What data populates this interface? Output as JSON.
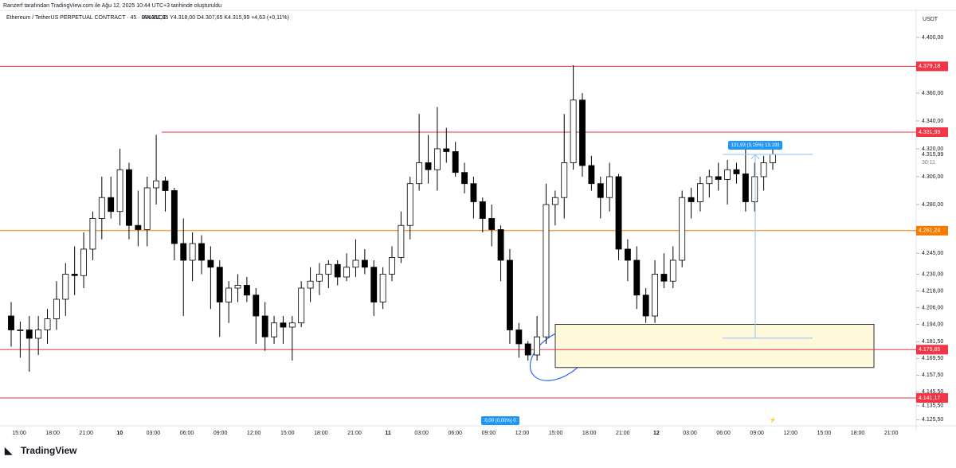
{
  "header": {
    "credit": "Ranzerf tarafından TradingView.com ile Ağu 12, 2025 10:44 UTC+3 tarihinde oluşturuldu",
    "logo": "TradingView"
  },
  "chart_data": {
    "type": "candlestick",
    "title": "Ethereum / TetherUS PERPETUAL CONTRACT · 45 · BINANCE",
    "subtitle": "A4.311,35  Y4.318,00  D4.307,65  K4.315,99  +4,63 (+0,11%)",
    "currency": "USDT",
    "up_color": "#ffffff",
    "down_color": "#000000",
    "border_color": "#000000",
    "open": [
      4200,
      4190,
      4190,
      4184,
      4190,
      4198,
      4212,
      4230,
      4229,
      4248,
      4270,
      4285,
      4275,
      4305,
      4265,
      4262,
      4292,
      4297,
      4290,
      4252,
      4240,
      4252,
      4240,
      4235,
      4210,
      4220,
      4222,
      4215,
      4200,
      4185,
      4195,
      4192,
      4195,
      4220,
      4225,
      4230,
      4237,
      4228,
      4235,
      4240,
      4235,
      4210,
      4230,
      4242,
      4265,
      4295,
      4310,
      4305,
      4320,
      4318,
      4303,
      4295,
      4282,
      4270,
      4262,
      4240,
      4190,
      4180,
      4172,
      4185,
      4280,
      4285,
      4310,
      4355,
      4308,
      4295,
      4285,
      4300,
      4248,
      4240,
      4215,
      4200,
      4230,
      4225,
      4240,
      4285,
      4282,
      4295,
      4300,
      4298,
      4305,
      4302,
      4282,
      4300,
      4310
    ],
    "high": [
      4210,
      4196,
      4200,
      4200,
      4205,
      4225,
      4238,
      4250,
      4260,
      4275,
      4300,
      4300,
      4320,
      4310,
      4290,
      4300,
      4330,
      4300,
      4292,
      4270,
      4260,
      4258,
      4250,
      4240,
      4225,
      4230,
      4228,
      4220,
      4210,
      4200,
      4200,
      4200,
      4225,
      4235,
      4238,
      4240,
      4240,
      4245,
      4255,
      4248,
      4240,
      4235,
      4250,
      4275,
      4300,
      4345,
      4330,
      4350,
      4335,
      4325,
      4310,
      4300,
      4285,
      4280,
      4265,
      4248,
      4195,
      4182,
      4200,
      4295,
      4290,
      4345,
      4380,
      4360,
      4315,
      4300,
      4310,
      4302,
      4255,
      4250,
      4220,
      4240,
      4245,
      4250,
      4290,
      4292,
      4300,
      4305,
      4310,
      4312,
      4310,
      4320,
      4310,
      4315,
      4320
    ],
    "low": [
      4178,
      4170,
      4160,
      4172,
      4180,
      4190,
      4200,
      4215,
      4220,
      4240,
      4255,
      4270,
      4265,
      4255,
      4250,
      4250,
      4280,
      4275,
      4240,
      4200,
      4225,
      4230,
      4205,
      4185,
      4195,
      4210,
      4210,
      4180,
      4175,
      4180,
      4180,
      4168,
      4192,
      4210,
      4215,
      4220,
      4222,
      4225,
      4228,
      4230,
      4200,
      4205,
      4225,
      4238,
      4255,
      4290,
      4295,
      4290,
      4310,
      4300,
      4288,
      4270,
      4260,
      4250,
      4225,
      4180,
      4170,
      4168,
      4168,
      4180,
      4265,
      4270,
      4305,
      4300,
      4290,
      4270,
      4275,
      4240,
      4225,
      4205,
      4195,
      4195,
      4220,
      4220,
      4235,
      4270,
      4275,
      4285,
      4290,
      4280,
      4295,
      4275,
      4275,
      4290,
      4305
    ],
    "close": [
      4190,
      4190,
      4184,
      4190,
      4198,
      4212,
      4230,
      4229,
      4248,
      4270,
      4285,
      4275,
      4305,
      4265,
      4262,
      4292,
      4297,
      4290,
      4252,
      4240,
      4252,
      4240,
      4235,
      4210,
      4220,
      4222,
      4215,
      4200,
      4185,
      4195,
      4192,
      4195,
      4220,
      4225,
      4230,
      4237,
      4228,
      4235,
      4240,
      4235,
      4210,
      4230,
      4242,
      4265,
      4295,
      4310,
      4305,
      4320,
      4318,
      4303,
      4295,
      4282,
      4270,
      4262,
      4240,
      4190,
      4180,
      4172,
      4185,
      4280,
      4285,
      4310,
      4355,
      4308,
      4295,
      4285,
      4300,
      4248,
      4240,
      4215,
      4200,
      4230,
      4225,
      4240,
      4285,
      4282,
      4295,
      4300,
      4298,
      4305,
      4302,
      4282,
      4300,
      4310,
      4316
    ],
    "time_labels": [
      "15:00",
      "18:00",
      "21:00",
      "10",
      "03:00",
      "06:00",
      "09:00",
      "12:00",
      "15:00",
      "18:00",
      "21:00",
      "11",
      "03:00",
      "06:00",
      "09:00",
      "12:00",
      "15:00",
      "18:00",
      "21:00",
      "12",
      "03:00",
      "06:00",
      "09:00",
      "12:00",
      "15:00",
      "18:00",
      "21:00"
    ],
    "ylim": [
      4118.3,
      4421.1
    ],
    "yticks": [
      {
        "value": 4400,
        "label": "4.400,00"
      },
      {
        "value": 4360,
        "label": "4.360,00"
      },
      {
        "value": 4340,
        "label": "4.340,00"
      },
      {
        "value": 4320,
        "label": "4.320,00"
      },
      {
        "value": 4300,
        "label": "4.300,00"
      },
      {
        "value": 4280,
        "label": "4.280,00"
      },
      {
        "value": 4245,
        "label": "4.245,00"
      },
      {
        "value": 4230,
        "label": "4.230,00"
      },
      {
        "value": 4218,
        "label": "4.218,00"
      },
      {
        "value": 4206,
        "label": "4.206,00"
      },
      {
        "value": 4194,
        "label": "4.194,00"
      },
      {
        "value": 4181.5,
        "label": "4.181,50"
      },
      {
        "value": 4169.5,
        "label": "4.169,50"
      },
      {
        "value": 4157.5,
        "label": "4.157,50"
      },
      {
        "value": 4145.5,
        "label": "4.145,50"
      },
      {
        "value": 4135.5,
        "label": "4.135,50"
      },
      {
        "value": 4125.5,
        "label": "4.125,50"
      }
    ],
    "levels": [
      {
        "value": 4379.18,
        "label": "4.379,18",
        "color": "#f23645"
      },
      {
        "value": 4331.99,
        "label": "4.331,99",
        "color": "#f23645"
      },
      {
        "value": 4261.24,
        "label": "4.261,24",
        "color": "#f57c00"
      },
      {
        "value": 4175.85,
        "label": "4.175,85",
        "color": "#f23645"
      },
      {
        "value": 4141.17,
        "label": "4.141,17",
        "color": "#f23645"
      }
    ],
    "zone": {
      "top": 4194,
      "bottom": 4163
    },
    "measure": {
      "from": 4184.06,
      "to": 4315.99,
      "label": "131,93 (3,15%) 13.193"
    },
    "zero_label": "0,00 (0,00%) 0",
    "last_price": {
      "value": 4315.99,
      "label": "4.315,99"
    },
    "countdown": "30:11"
  }
}
